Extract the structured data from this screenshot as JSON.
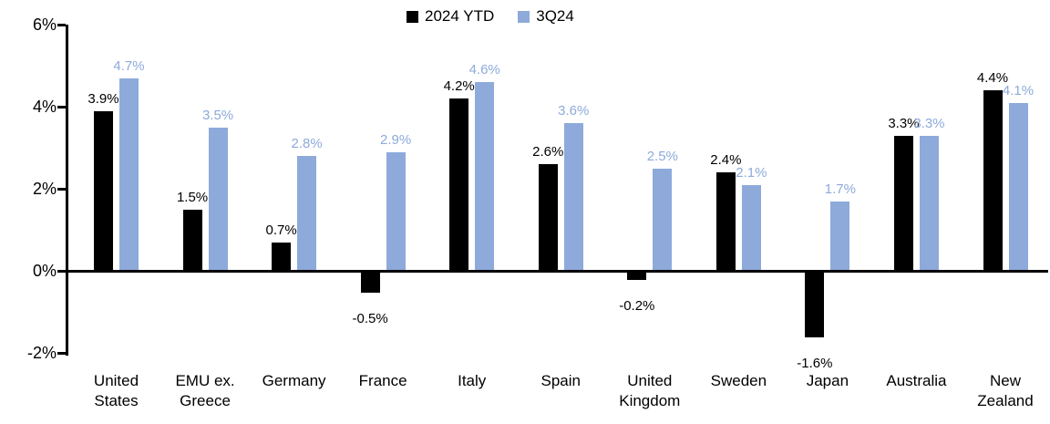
{
  "chart_data": {
    "type": "bar",
    "title": "",
    "xlabel": "",
    "ylabel": "",
    "ylim": [
      -2,
      6
    ],
    "grid": false,
    "legend_position": "top",
    "value_suffix": "%",
    "categories": [
      "United States",
      "EMU ex. Greece",
      "Germany",
      "France",
      "Italy",
      "Spain",
      "United Kingdom",
      "Sweden",
      "Japan",
      "Australia",
      "New Zealand"
    ],
    "series": [
      {
        "name": "2024 YTD",
        "color": "#000000",
        "values": [
          3.9,
          1.5,
          0.7,
          -0.5,
          4.2,
          2.6,
          -0.2,
          2.4,
          -1.6,
          3.3,
          4.4
        ]
      },
      {
        "name": "3Q24",
        "color": "#8EAADB",
        "values": [
          4.7,
          3.5,
          2.8,
          2.9,
          4.6,
          3.6,
          2.5,
          2.1,
          1.7,
          3.3,
          4.1
        ]
      }
    ],
    "yticks": [
      {
        "label": "6%",
        "value": 6
      },
      {
        "label": "4%",
        "value": 4
      },
      {
        "label": "2%",
        "value": 2
      },
      {
        "label": "0%",
        "value": 0
      },
      {
        "label": "-2%",
        "value": -2
      }
    ]
  }
}
